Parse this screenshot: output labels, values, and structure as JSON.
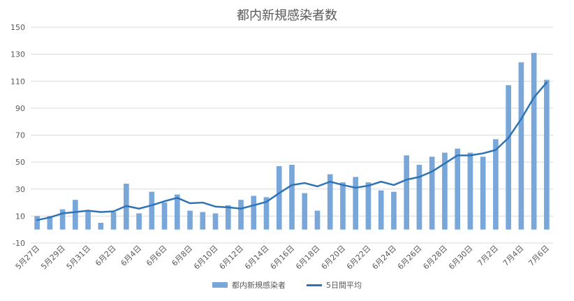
{
  "chart_data": {
    "type": "bar",
    "title": "都内新規感染者数",
    "xlabel": "",
    "ylabel": "",
    "ylim": [
      -10,
      150
    ],
    "y_ticks": [
      -10,
      10,
      30,
      50,
      70,
      90,
      110,
      130,
      150
    ],
    "grid": true,
    "legend_position": "bottom",
    "colors": {
      "bar": "#7aa7da",
      "line": "#2e74b5",
      "grid": "#d9d9d9"
    },
    "categories": [
      "5月27日",
      "5月28日",
      "5月29日",
      "5月30日",
      "5月31日",
      "6月1日",
      "6月2日",
      "6月3日",
      "6月4日",
      "6月5日",
      "6月6日",
      "6月7日",
      "6月8日",
      "6月9日",
      "6月10日",
      "6月11日",
      "6月12日",
      "6月13日",
      "6月14日",
      "6月15日",
      "6月16日",
      "6月17日",
      "6月18日",
      "6月19日",
      "6月20日",
      "6月21日",
      "6月22日",
      "6月23日",
      "6月24日",
      "6月25日",
      "6月26日",
      "6月27日",
      "6月28日",
      "6月29日",
      "6月30日",
      "7月1日",
      "7月2日",
      "7月3日",
      "7月4日",
      "7月5日",
      "7月6日"
    ],
    "tick_labels": [
      "5月27日",
      "5月29日",
      "5月31日",
      "6月2日",
      "6月4日",
      "6月6日",
      "6月8日",
      "6月10日",
      "6月12日",
      "6月14日",
      "6月16日",
      "6月18日",
      "6月20日",
      "6月22日",
      "6月24日",
      "6月26日",
      "6月28日",
      "6月30日",
      "7月2日",
      "7月4日",
      "7月6日"
    ],
    "series": [
      {
        "name": "都内新規感染者",
        "kind": "bar",
        "values": [
          10,
          10,
          15,
          22,
          14,
          5,
          13,
          34,
          12,
          28,
          20,
          26,
          14,
          13,
          12,
          18,
          22,
          25,
          24,
          47,
          48,
          27,
          14,
          41,
          35,
          39,
          35,
          29,
          28,
          55,
          48,
          54,
          57,
          60,
          57,
          54,
          67,
          107,
          124,
          131,
          111
        ]
      },
      {
        "name": "5日間平均",
        "kind": "line",
        "values": [
          7,
          9,
          12,
          13,
          14,
          13,
          13.5,
          17.5,
          15.5,
          18,
          21,
          23.5,
          19.5,
          20,
          17,
          16.5,
          15.5,
          18,
          20.5,
          27,
          33,
          34.5,
          32,
          35.5,
          33,
          31,
          32.5,
          35.5,
          33,
          37,
          39,
          43,
          49,
          55,
          55,
          56.5,
          59,
          68,
          82,
          98,
          109
        ]
      }
    ]
  }
}
